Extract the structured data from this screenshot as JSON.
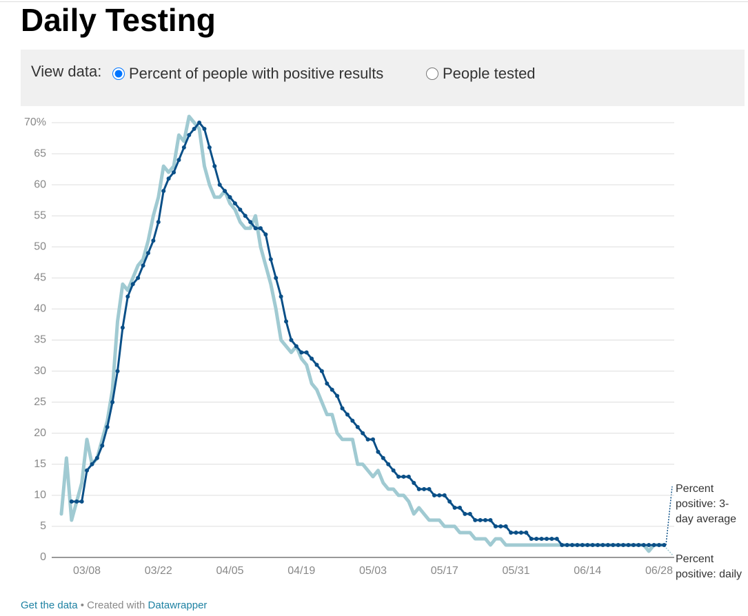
{
  "header": {
    "title": "Daily Testing"
  },
  "controls": {
    "label": "View data:",
    "options": [
      "Percent of people with positive results",
      "People tested"
    ],
    "selected": 0
  },
  "chart_data": {
    "type": "line",
    "categories": [
      null,
      null,
      null,
      null,
      null,
      "03/08",
      null,
      null,
      null,
      null,
      null,
      null,
      null,
      null,
      null,
      null,
      null,
      null,
      null,
      "03/22",
      null,
      null,
      null,
      null,
      null,
      null,
      null,
      null,
      null,
      null,
      null,
      null,
      null,
      "04/05",
      null,
      null,
      null,
      null,
      null,
      null,
      null,
      null,
      null,
      null,
      null,
      null,
      null,
      "04/19",
      null,
      null,
      null,
      null,
      null,
      null,
      null,
      null,
      null,
      null,
      null,
      null,
      null,
      "05/03",
      null,
      null,
      null,
      null,
      null,
      null,
      null,
      null,
      null,
      null,
      null,
      null,
      null,
      "05/17",
      null,
      null,
      null,
      null,
      null,
      null,
      null,
      null,
      null,
      null,
      null,
      null,
      null,
      "05/31",
      null,
      null,
      null,
      null,
      null,
      null,
      null,
      null,
      null,
      null,
      null,
      null,
      null,
      "06/14",
      null,
      null,
      null,
      null,
      null,
      null,
      null,
      null,
      null,
      null,
      null,
      null,
      null,
      "06/28",
      null
    ],
    "series": [
      {
        "name": "Percent positive: daily",
        "color": "#a0cad2",
        "values": [
          7,
          16,
          6,
          9,
          12,
          19,
          15,
          16,
          19,
          22,
          27,
          38,
          44,
          43,
          45,
          47,
          48,
          51,
          55,
          58,
          63,
          62,
          63,
          68,
          67,
          71,
          70,
          69,
          63,
          60,
          58,
          58,
          59,
          57,
          56,
          54,
          53,
          53,
          55,
          50,
          47,
          44,
          40,
          35,
          34,
          33,
          34,
          32,
          31,
          28,
          27,
          25,
          23,
          23,
          20,
          19,
          19,
          19,
          15,
          15,
          14,
          13,
          14,
          12,
          11,
          11,
          10,
          10,
          9,
          7,
          8,
          7,
          6,
          6,
          6,
          5,
          5,
          5,
          4,
          4,
          4,
          3,
          3,
          3,
          2,
          3,
          3,
          2,
          2,
          2,
          2,
          2,
          2,
          2,
          2,
          2,
          2,
          2,
          2,
          2,
          2,
          2,
          2,
          2,
          2,
          2,
          2,
          2,
          2,
          2,
          2,
          2,
          2,
          2,
          2,
          1,
          2,
          2,
          2
        ]
      },
      {
        "name": "Percent positive: 3-day average",
        "color": "#0a4f87",
        "values": [
          null,
          null,
          9,
          9,
          9,
          14,
          15,
          16,
          18,
          21,
          25,
          30,
          37,
          42,
          44,
          45,
          47,
          49,
          51,
          54,
          59,
          61,
          62,
          64,
          66,
          68,
          69,
          70,
          69,
          66,
          63,
          60,
          59,
          58,
          57,
          56,
          55,
          54,
          53,
          53,
          52,
          48,
          45,
          42,
          38,
          35,
          34,
          33,
          33,
          32,
          31,
          30,
          28,
          27,
          26,
          24,
          23,
          22,
          21,
          20,
          19,
          19,
          17,
          16,
          15,
          14,
          13,
          13,
          13,
          12,
          11,
          11,
          11,
          10,
          10,
          10,
          9,
          8,
          8,
          7,
          7,
          6,
          6,
          6,
          6,
          5,
          5,
          5,
          4,
          4,
          4,
          4,
          3,
          3,
          3,
          3,
          3,
          3,
          2,
          2,
          2,
          2,
          2,
          2,
          2,
          2,
          2,
          2,
          2,
          2,
          2,
          2,
          2,
          2,
          2,
          2,
          2,
          2,
          2
        ]
      }
    ],
    "ylim": [
      0,
      70
    ],
    "yticks": [
      0,
      5,
      10,
      15,
      20,
      25,
      30,
      35,
      40,
      45,
      50,
      55,
      60,
      65,
      {
        "value": 70,
        "label": "70%"
      }
    ],
    "grid": true
  },
  "footer": {
    "get_data": "Get the data",
    "created_with": "• Created with",
    "datawrapper": "Datawrapper"
  }
}
